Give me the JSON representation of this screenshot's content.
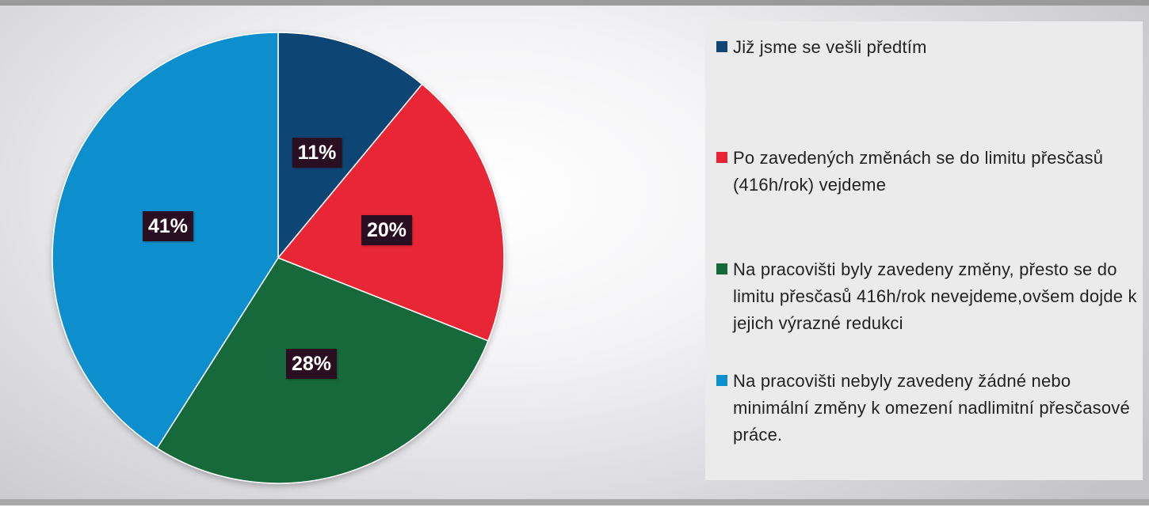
{
  "chart_data": {
    "type": "pie",
    "start_angle_deg": 0,
    "direction": "clockwise",
    "slices": [
      {
        "label": "Již jsme se vešli předtím",
        "value": 11,
        "display": "11%",
        "color": "#114574"
      },
      {
        "label": "Po zavedených změnách se do limitu přesčasů (416h/rok) vejdeme",
        "value": 20,
        "display": "20%",
        "color": "#e92535"
      },
      {
        "label": "Na pracovišti byly zavedeny změny, přesto se do limitu přesčasů 416h/rok nevejdeme,ovšem dojde k jejich výrazné redukci",
        "value": 28,
        "display": "28%",
        "color": "#13693a"
      },
      {
        "label": "Na pracovišti nebyly zavedeny žádné nebo minimální změny k omezení nadlimitní přesčasové práce.",
        "value": 41,
        "display": "41%",
        "color": "#0b8fcd"
      }
    ],
    "legend_position": "right"
  }
}
